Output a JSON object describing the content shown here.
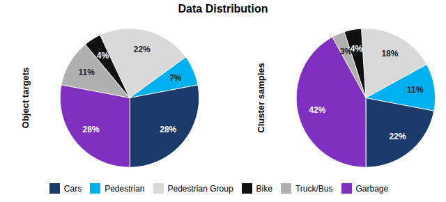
{
  "chart_data": {
    "type": "pie",
    "title": "Data Distribution",
    "categories": [
      "Cars",
      "Pedestrian",
      "Pedestrian Group",
      "Bike",
      "Truck/Bus",
      "Garbage"
    ],
    "colors": [
      "#1a3a6b",
      "#00b0f0",
      "#d9d9d9",
      "#111111",
      "#b0b0b0",
      "#8030c0"
    ],
    "series": [
      {
        "name": "Object targets",
        "values": [
          28,
          7,
          22,
          4,
          11,
          28
        ],
        "value_labels": [
          "28%",
          "7%",
          "22%",
          "4%",
          "11%",
          "28%"
        ]
      },
      {
        "name": "Cluster samples",
        "values": [
          22,
          11,
          18,
          4,
          3,
          42
        ],
        "value_labels": [
          "22%",
          "11%",
          "18%",
          "4%",
          "3%",
          "42%"
        ]
      }
    ],
    "data_labels": true,
    "legend": "bottom"
  }
}
